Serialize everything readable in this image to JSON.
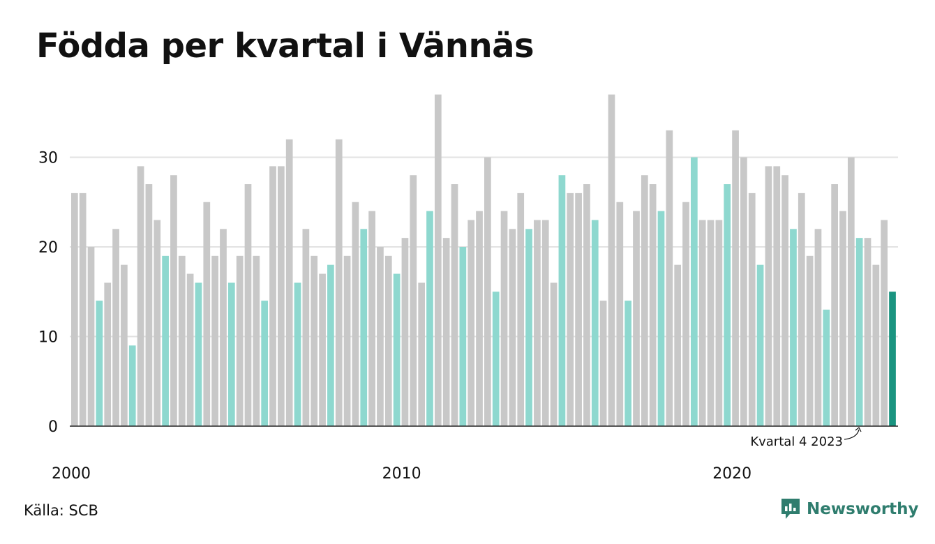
{
  "title": "Födda per kvartal i Vännäs",
  "source": "Källa: SCB",
  "brand": "Newsworthy",
  "annotation": "Kvartal 4 2023",
  "colors": {
    "default_bar": "#c8c8c8",
    "highlight_bar": "#8ed8cf",
    "latest_bar": "#1a9480",
    "grid": "#e2e2e2",
    "axis": "#222222",
    "brand": "#2f7d6e"
  },
  "chart_data": {
    "type": "bar",
    "xlabel": "",
    "ylabel": "",
    "ylim": [
      0,
      37
    ],
    "y_ticks": [
      0,
      10,
      20,
      30
    ],
    "x_tick_labels": [
      "2000",
      "2010",
      "2020"
    ],
    "grid": true,
    "highlight": "Quarter 4 of every year; latest quarter in dark teal",
    "series": [
      {
        "values": [
          26,
          26,
          20,
          14,
          16,
          22,
          18,
          9,
          29,
          27,
          23,
          19,
          28,
          19,
          17,
          16,
          25,
          19,
          22,
          16,
          19,
          27,
          19,
          14,
          29,
          29,
          32,
          16,
          22,
          19,
          17,
          18,
          32,
          19,
          25,
          22,
          24,
          20,
          19,
          17,
          21,
          28,
          16,
          24,
          37,
          21,
          27,
          20,
          23,
          24,
          30,
          15,
          24,
          22,
          26,
          22,
          23,
          23,
          16,
          28,
          26,
          26,
          27,
          23,
          14,
          37,
          25,
          14,
          24,
          28,
          27,
          24,
          33,
          18,
          25,
          30,
          23,
          23,
          23,
          27,
          33,
          30,
          26,
          18,
          29,
          29,
          28,
          22,
          26,
          19,
          22,
          13,
          27,
          24,
          30,
          21,
          21,
          18,
          23,
          15
        ]
      }
    ],
    "first_quarter": "2000 Q1",
    "last_quarter": "2024 Q4"
  }
}
